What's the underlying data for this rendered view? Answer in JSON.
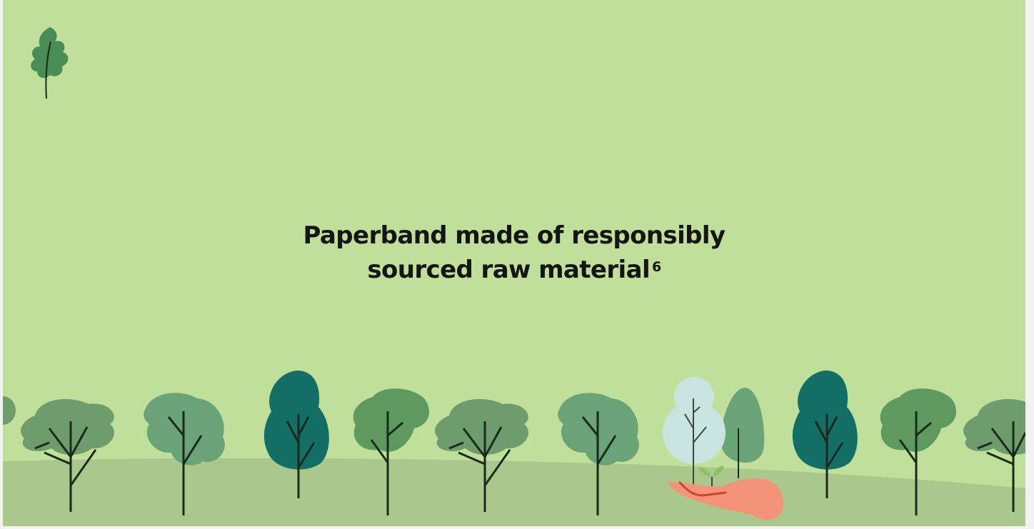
{
  "slide": {
    "headline_line1": "Paperband made of responsibly",
    "headline_line2": "sourced raw material",
    "footnote_ref": "6"
  },
  "colors": {
    "sky": "#bfdf9b",
    "ground": "#aac78c",
    "leaf_dark": "#4a8c55",
    "teal_tree": "#136f66",
    "mid_tree": "#6aa377",
    "sage_tree": "#6f9c6d",
    "pale_tree": "#c9e4e0",
    "hand": "#f4937a",
    "trunk": "#1b2a1d"
  },
  "icons": [
    "oak-leaf-icon",
    "tree-icon",
    "hand-holding-tree-icon"
  ]
}
